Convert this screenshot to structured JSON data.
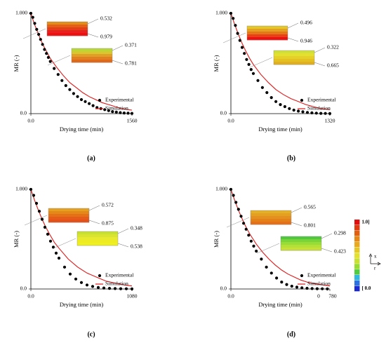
{
  "figure": {
    "colorbar": {
      "max_label": "1.0]",
      "min_label": "[ 0.0",
      "colors": [
        "#e01010",
        "#e03a10",
        "#e06010",
        "#e48818",
        "#e8a820",
        "#e4c828",
        "#e4e030",
        "#c8e030",
        "#98dc30",
        "#50cc40",
        "#30b8e0",
        "#2c72e0",
        "#1a2ad0"
      ],
      "x_label": "x",
      "r_label": "r"
    }
  },
  "chart_data": [
    {
      "type": "scatter",
      "panel_label": "(a)",
      "xlabel": "Drying time (min)",
      "ylabel": "MR (-)",
      "xlim": [
        0,
        1560
      ],
      "ylim": [
        0,
        1
      ],
      "x_tick_labels": [
        "0.0",
        "1560"
      ],
      "y_tick_labels": [
        "0.0",
        "1.000"
      ],
      "legend": {
        "position": "right",
        "experimental": "Experimental",
        "simulation": "Simulation"
      },
      "series": [
        {
          "name": "Experimental",
          "x": [
            0,
            30,
            60,
            90,
            120,
            150,
            180,
            210,
            240,
            270,
            300,
            360,
            420,
            480,
            540,
            600,
            660,
            720,
            780,
            840,
            900,
            960,
            1020,
            1080,
            1140,
            1200,
            1260,
            1320,
            1380,
            1440,
            1500,
            1560
          ],
          "y": [
            1.0,
            0.96,
            0.9,
            0.84,
            0.79,
            0.74,
            0.69,
            0.64,
            0.6,
            0.56,
            0.52,
            0.45,
            0.39,
            0.33,
            0.28,
            0.24,
            0.2,
            0.17,
            0.14,
            0.12,
            0.1,
            0.08,
            0.06,
            0.05,
            0.04,
            0.03,
            0.02,
            0.015,
            0.01,
            0.006,
            0.004,
            0.002
          ]
        },
        {
          "name": "Simulation",
          "x": [
            0,
            50,
            100,
            150,
            200,
            250,
            300,
            400,
            500,
            600,
            700,
            800,
            900,
            1000,
            1100,
            1200,
            1300,
            1400,
            1500,
            1560
          ],
          "y": [
            1.0,
            0.9,
            0.82,
            0.74,
            0.67,
            0.61,
            0.55,
            0.46,
            0.38,
            0.31,
            0.26,
            0.21,
            0.17,
            0.14,
            0.11,
            0.09,
            0.07,
            0.05,
            0.04,
            0.035
          ]
        }
      ],
      "insets": [
        {
          "colors": [
            "#e09018",
            "#e46018",
            "#e44018",
            "#e82020",
            "#ee1010"
          ],
          "top_label": "0.532",
          "bottom_label": "0.979"
        },
        {
          "colors": [
            "#b8d838",
            "#d8c830",
            "#e0a028",
            "#e08020",
            "#e06818"
          ],
          "top_label": "0.371",
          "bottom_label": "0.781"
        }
      ]
    },
    {
      "type": "scatter",
      "panel_label": "(b)",
      "xlabel": "Drying time (min)",
      "ylabel": "MR (-)",
      "xlim": [
        0,
        1320
      ],
      "ylim": [
        0,
        1
      ],
      "x_tick_labels": [
        "0.0",
        "1320"
      ],
      "y_tick_labels": [
        "0.0",
        "1.000"
      ],
      "legend": {
        "position": "right",
        "experimental": "Experimental",
        "simulation": "Simulation"
      },
      "series": [
        {
          "name": "Experimental",
          "x": [
            0,
            30,
            60,
            90,
            120,
            150,
            180,
            210,
            240,
            270,
            300,
            360,
            420,
            480,
            540,
            600,
            660,
            720,
            780,
            840,
            900,
            960,
            1020,
            1080,
            1140,
            1200,
            1260,
            1320
          ],
          "y": [
            1.0,
            0.95,
            0.88,
            0.8,
            0.73,
            0.66,
            0.6,
            0.54,
            0.49,
            0.44,
            0.4,
            0.33,
            0.26,
            0.21,
            0.16,
            0.12,
            0.09,
            0.07,
            0.05,
            0.035,
            0.025,
            0.018,
            0.012,
            0.008,
            0.005,
            0.003,
            0.002,
            0.001
          ]
        },
        {
          "name": "Simulation",
          "x": [
            0,
            50,
            100,
            150,
            200,
            250,
            300,
            400,
            500,
            600,
            700,
            800,
            900,
            1000,
            1100,
            1200,
            1320
          ],
          "y": [
            1.0,
            0.89,
            0.79,
            0.7,
            0.62,
            0.55,
            0.49,
            0.39,
            0.31,
            0.24,
            0.19,
            0.15,
            0.12,
            0.09,
            0.07,
            0.05,
            0.04
          ]
        }
      ],
      "insets": [
        {
          "colors": [
            "#e4c828",
            "#e4a020",
            "#e47818",
            "#e84018",
            "#ee1010"
          ],
          "top_label": "0.496",
          "bottom_label": "0.946"
        },
        {
          "colors": [
            "#d0e038",
            "#e4e030",
            "#e4d028",
            "#e4c020",
            "#e0b020"
          ],
          "top_label": "0.322",
          "bottom_label": "0.665"
        }
      ]
    },
    {
      "type": "scatter",
      "panel_label": "(c)",
      "xlabel": "Drying time (min)",
      "ylabel": "MR (-)",
      "xlim": [
        0,
        1080
      ],
      "ylim": [
        0,
        1
      ],
      "x_tick_labels": [
        "0.0",
        "1080"
      ],
      "y_tick_labels": [
        "0.0",
        "1.000"
      ],
      "legend": {
        "position": "right",
        "experimental": "Experimental",
        "simulation": "Simulation"
      },
      "series": [
        {
          "name": "Experimental",
          "x": [
            0,
            30,
            60,
            90,
            120,
            150,
            180,
            210,
            240,
            270,
            300,
            360,
            420,
            480,
            540,
            600,
            660,
            720,
            780,
            840,
            900,
            960,
            1020,
            1080
          ],
          "y": [
            1.0,
            0.94,
            0.86,
            0.78,
            0.7,
            0.62,
            0.55,
            0.48,
            0.42,
            0.36,
            0.31,
            0.22,
            0.15,
            0.1,
            0.065,
            0.04,
            0.025,
            0.015,
            0.01,
            0.006,
            0.004,
            0.003,
            0.002,
            0.001
          ]
        },
        {
          "name": "Simulation",
          "x": [
            0,
            40,
            80,
            120,
            160,
            200,
            250,
            300,
            400,
            500,
            600,
            700,
            800,
            900,
            1000,
            1080
          ],
          "y": [
            1.0,
            0.89,
            0.79,
            0.7,
            0.62,
            0.55,
            0.47,
            0.41,
            0.3,
            0.22,
            0.16,
            0.12,
            0.08,
            0.06,
            0.04,
            0.03
          ]
        }
      ],
      "insets": [
        {
          "colors": [
            "#e4a020",
            "#e48818",
            "#e47018",
            "#e45c18",
            "#e45018"
          ],
          "top_label": "0.572",
          "bottom_label": "0.875"
        },
        {
          "colors": [
            "#c8e030",
            "#d8e430",
            "#e8ea30",
            "#eeec20",
            "#eef020"
          ],
          "top_label": "0.348",
          "bottom_label": "0.538"
        }
      ]
    },
    {
      "type": "scatter",
      "panel_label": "(d)",
      "xlabel": "Drying time (min)",
      "ylabel": "MR (-)",
      "xlim": [
        0,
        780
      ],
      "ylim": [
        0,
        1
      ],
      "x_tick_labels": [
        "0.0",
        "0",
        "780"
      ],
      "y_tick_labels": [
        "0.0",
        "1.000"
      ],
      "legend": {
        "position": "right",
        "experimental": "Experimental",
        "simulation": "Simulation"
      },
      "series": [
        {
          "name": "Experimental",
          "x": [
            0,
            20,
            40,
            60,
            80,
            100,
            120,
            140,
            160,
            180,
            200,
            240,
            280,
            320,
            360,
            400,
            440,
            480,
            520,
            560,
            600,
            640,
            680,
            720,
            760
          ],
          "y": [
            1.0,
            0.94,
            0.87,
            0.8,
            0.73,
            0.66,
            0.6,
            0.54,
            0.48,
            0.43,
            0.38,
            0.3,
            0.22,
            0.16,
            0.11,
            0.07,
            0.045,
            0.028,
            0.018,
            0.011,
            0.007,
            0.004,
            0.003,
            0.002,
            0.001
          ]
        },
        {
          "name": "Simulation",
          "x": [
            0,
            30,
            60,
            90,
            120,
            150,
            200,
            250,
            300,
            350,
            400,
            450,
            500,
            550,
            600,
            650,
            700,
            780
          ],
          "y": [
            1.0,
            0.89,
            0.79,
            0.7,
            0.62,
            0.55,
            0.45,
            0.37,
            0.3,
            0.24,
            0.19,
            0.15,
            0.12,
            0.09,
            0.07,
            0.055,
            0.045,
            0.03
          ]
        }
      ],
      "insets": [
        {
          "colors": [
            "#e4b028",
            "#e4a020",
            "#e49020",
            "#e48018",
            "#e47018"
          ],
          "top_label": "0.565",
          "bottom_label": "0.801"
        },
        {
          "colors": [
            "#50c840",
            "#78d438",
            "#98dc38",
            "#b4e038",
            "#c8e038"
          ],
          "top_label": "0.298",
          "bottom_label": "0.423"
        }
      ]
    }
  ]
}
